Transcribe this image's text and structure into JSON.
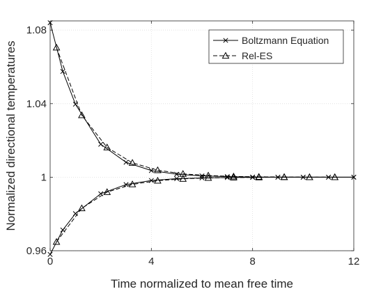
{
  "chart_data": {
    "type": "line",
    "title": "",
    "xlabel": "Time normalized to mean free time",
    "ylabel": "Normalized directional temperatures",
    "xlim": [
      0,
      12
    ],
    "ylim": [
      0.96,
      1.085
    ],
    "xticks": [
      0,
      4,
      8,
      12
    ],
    "xtick_labels": [
      "0",
      "4",
      "8",
      "12"
    ],
    "yticks": [
      0.96,
      1,
      1.04,
      1.08
    ],
    "ytick_labels": [
      "0.96",
      "1",
      "1.04",
      "1.08"
    ],
    "grid": true,
    "legend_position": "top-right",
    "colors": {
      "axis": "#262626",
      "grid": "#dcdcdc",
      "series": "#000000"
    },
    "series": [
      {
        "name": "Boltzmann Equation",
        "style": "solid",
        "marker": "x",
        "branches": [
          {
            "x": [
              0,
              0.5,
              1,
              2,
              3,
              4,
              5,
              6,
              7,
              8,
              9,
              10,
              11,
              12
            ],
            "y": [
              1.084,
              1.0575,
              1.0397,
              1.0179,
              1.0081,
              1.0036,
              1.0016,
              1.0007,
              1.0003,
              1.0001,
              1.0,
              1.0,
              1.0,
              1.0
            ]
          },
          {
            "x": [
              0,
              0.5,
              1,
              2,
              3,
              4,
              5,
              6,
              7,
              8,
              9,
              10,
              11,
              12
            ],
            "y": [
              0.958,
              0.9713,
              0.9802,
              0.991,
              0.996,
              0.9982,
              0.9992,
              0.9996,
              0.9998,
              0.9999,
              1.0,
              1.0,
              1.0,
              1.0
            ]
          }
        ]
      },
      {
        "name": "Rel-ES",
        "style": "dashed",
        "marker": "triangle",
        "branches": [
          {
            "x": [
              0.25,
              1.25,
              2.25,
              3.25,
              4.25,
              5.25,
              6.25,
              7.25,
              8.25,
              9.25,
              10.25,
              11.25
            ],
            "y": [
              1.0705,
              1.0337,
              1.0162,
              1.0078,
              1.0038,
              1.0018,
              1.0009,
              1.0004,
              1.0002,
              1.0001,
              1.0,
              1.0
            ]
          },
          {
            "x": [
              0.25,
              1.25,
              2.25,
              3.25,
              4.25,
              5.25,
              6.25,
              7.25,
              8.25,
              9.25,
              10.25,
              11.25
            ],
            "y": [
              0.9648,
              0.9831,
              0.9919,
              0.9961,
              0.9981,
              0.9991,
              0.9996,
              0.9998,
              0.9999,
              1.0,
              1.0,
              1.0
            ]
          }
        ]
      }
    ]
  }
}
